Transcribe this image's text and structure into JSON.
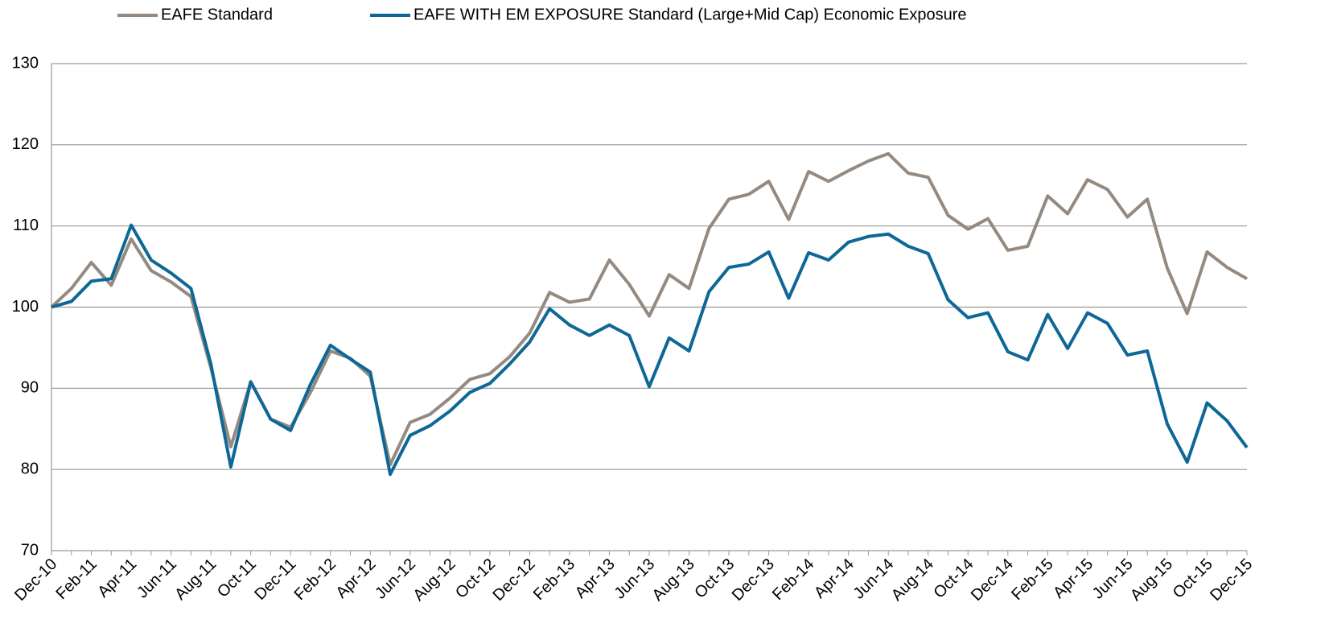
{
  "chart_data": {
    "type": "line",
    "categories": [
      "Dec-10",
      null,
      "Feb-11",
      null,
      "Apr-11",
      null,
      "Jun-11",
      null,
      "Aug-11",
      null,
      "Oct-11",
      null,
      "Dec-11",
      null,
      "Feb-12",
      null,
      "Apr-12",
      null,
      "Jun-12",
      null,
      "Aug-12",
      null,
      "Oct-12",
      null,
      "Dec-12",
      null,
      "Feb-13",
      null,
      "Apr-13",
      null,
      "Jun-13",
      null,
      "Aug-13",
      null,
      "Oct-13",
      null,
      "Dec-13",
      null,
      "Feb-14",
      null,
      "Apr-14",
      null,
      "Jun-14",
      null,
      "Aug-14",
      null,
      "Oct-14",
      null,
      "Dec-14",
      null,
      "Feb-15",
      null,
      "Apr-15",
      null,
      "Jun-15",
      null,
      "Aug-15",
      null,
      "Oct-15",
      null,
      "Dec-15"
    ],
    "series": [
      {
        "name": "EAFE Standard",
        "color": "#948a80",
        "values": [
          100,
          102.3,
          105.5,
          102.7,
          108.4,
          104.5,
          103.1,
          101.3,
          92.5,
          82.8,
          90.8,
          86.2,
          85.2,
          89.5,
          94.6,
          93.7,
          91.5,
          80.6,
          85.8,
          86.8,
          88.8,
          91.1,
          91.8,
          93.9,
          96.8,
          101.8,
          100.6,
          101,
          105.8,
          102.8,
          98.9,
          104,
          102.3,
          109.7,
          113.3,
          113.9,
          115.5,
          110.8,
          116.7,
          115.5,
          116.8,
          118,
          118.9,
          116.5,
          116,
          111.3,
          109.6,
          110.9,
          107,
          107.5,
          113.7,
          111.5,
          115.7,
          114.5,
          111.1,
          113.3,
          104.8,
          99.2,
          106.8,
          104.9,
          103.5
        ]
      },
      {
        "name": "EAFE WITH EM EXPOSURE Standard (Large+Mid Cap) Economic Exposure",
        "color": "#0e6896",
        "values": [
          100,
          100.7,
          103.2,
          103.5,
          110.1,
          105.8,
          104.2,
          102.3,
          93,
          80.3,
          90.8,
          86.2,
          84.8,
          90.5,
          95.3,
          93.6,
          92,
          79.4,
          84.2,
          85.4,
          87.2,
          89.5,
          90.6,
          93,
          95.7,
          99.8,
          97.8,
          96.5,
          97.8,
          96.5,
          90.2,
          96.2,
          94.6,
          101.9,
          104.9,
          105.3,
          106.8,
          101.1,
          106.7,
          105.8,
          108,
          108.7,
          109,
          107.5,
          106.6,
          100.9,
          98.7,
          99.3,
          94.5,
          93.5,
          99.1,
          94.9,
          99.3,
          98,
          94.1,
          94.6,
          85.6,
          80.9,
          88.2,
          86,
          82.7
        ]
      }
    ],
    "ylim": [
      70,
      130
    ],
    "yticks": [
      70,
      80,
      90,
      100,
      110,
      120,
      130
    ],
    "grid": true,
    "legend": "top"
  }
}
